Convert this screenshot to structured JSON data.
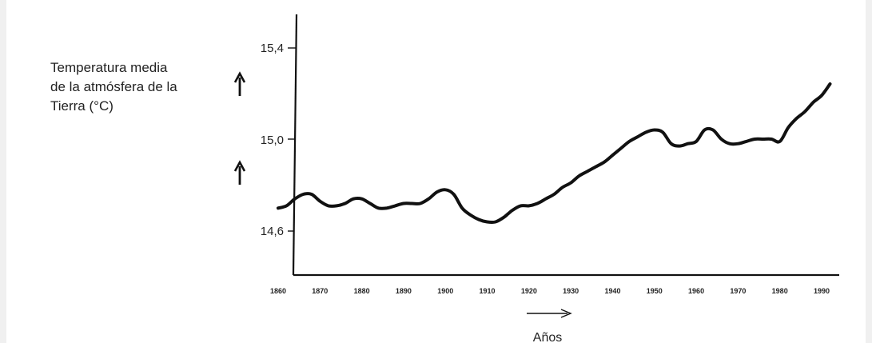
{
  "chart_data": {
    "type": "line",
    "ylabel_lines": [
      "Temperatura media",
      "de la atmósfera de la",
      "Tierra (°C)"
    ],
    "ylabel": "Temperatura media de la atmósfera de la Tierra (°C)",
    "xlabel": "Años",
    "y_ticks": [
      "15,4",
      "15,0",
      "14,6"
    ],
    "y_tick_values": [
      15.4,
      15.0,
      14.6
    ],
    "x_ticks": [
      "1860",
      "1870",
      "1880",
      "1890",
      "1900",
      "1910",
      "1920",
      "1930",
      "1940",
      "1950",
      "1960",
      "1970",
      "1980",
      "1990"
    ],
    "x_tick_values": [
      1860,
      1870,
      1880,
      1890,
      1900,
      1910,
      1920,
      1930,
      1940,
      1950,
      1960,
      1970,
      1980,
      1990
    ],
    "xlim": [
      1860,
      1993
    ],
    "ylim": [
      14.42,
      15.8
    ],
    "grid": false,
    "series": [
      {
        "x": [
          1860,
          1862,
          1864,
          1866,
          1868,
          1870,
          1872,
          1874,
          1876,
          1878,
          1880,
          1882,
          1884,
          1886,
          1888,
          1890,
          1892,
          1894,
          1896,
          1898,
          1900,
          1902,
          1904,
          1906,
          1908,
          1910,
          1912,
          1914,
          1916,
          1918,
          1920,
          1922,
          1924,
          1926,
          1928,
          1930,
          1932,
          1934,
          1936,
          1938,
          1940,
          1942,
          1944,
          1946,
          1948,
          1950,
          1952,
          1954,
          1956,
          1958,
          1960,
          1962,
          1964,
          1966,
          1968,
          1970,
          1972,
          1974,
          1976,
          1978,
          1980,
          1982,
          1984,
          1986,
          1988,
          1990,
          1992
        ],
        "values": [
          14.7,
          14.71,
          14.74,
          14.76,
          14.76,
          14.73,
          14.71,
          14.71,
          14.72,
          14.74,
          14.74,
          14.72,
          14.7,
          14.7,
          14.71,
          14.72,
          14.72,
          14.72,
          14.74,
          14.77,
          14.78,
          14.76,
          14.7,
          14.67,
          14.65,
          14.64,
          14.64,
          14.66,
          14.69,
          14.71,
          14.71,
          14.72,
          14.74,
          14.76,
          14.79,
          14.81,
          14.84,
          14.86,
          14.88,
          14.9,
          14.93,
          14.96,
          14.99,
          15.01,
          15.03,
          15.04,
          15.03,
          14.98,
          14.97,
          14.98,
          14.99,
          15.04,
          15.04,
          15.0,
          14.98,
          14.98,
          14.99,
          15.0,
          15.0,
          15.0,
          14.99,
          15.05,
          15.09,
          15.12,
          15.16,
          15.19,
          15.24
        ]
      }
    ]
  }
}
